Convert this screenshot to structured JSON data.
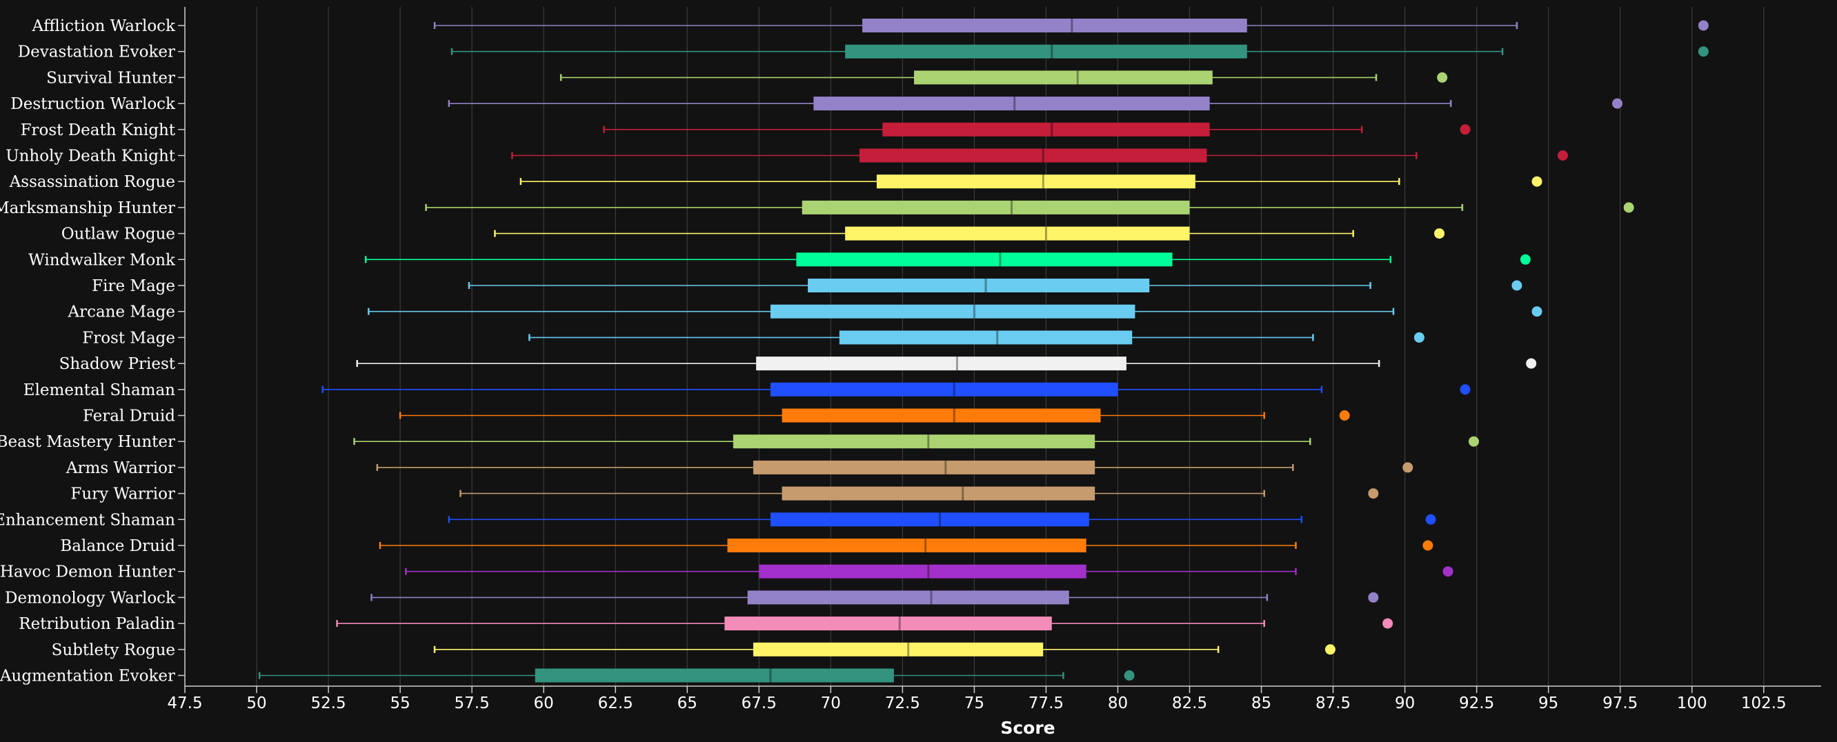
{
  "chart_data": {
    "type": "boxplot",
    "title": "",
    "xlabel": "Score",
    "ylabel": "",
    "xlim": [
      47.5,
      104.5
    ],
    "x_ticks": [
      "47.5",
      "50",
      "52.5",
      "55",
      "57.5",
      "60",
      "62.5",
      "65",
      "67.5",
      "70",
      "72.5",
      "75",
      "77.5",
      "80",
      "82.5",
      "85",
      "87.5",
      "90",
      "92.5",
      "95",
      "97.5",
      "100",
      "102.5"
    ],
    "grid": true,
    "legend": "none",
    "series": [
      {
        "category": "Affliction Warlock",
        "color": "#9482c9",
        "min": 56.2,
        "q1": 71.1,
        "median": 78.4,
        "q3": 84.5,
        "max": 93.9,
        "outlier": 100.4
      },
      {
        "category": "Devastation Evoker",
        "color": "#33937f",
        "min": 56.8,
        "q1": 70.5,
        "median": 77.7,
        "q3": 84.5,
        "max": 93.4,
        "outlier": 100.4
      },
      {
        "category": "Survival Hunter",
        "color": "#aad372",
        "min": 60.6,
        "q1": 72.9,
        "median": 78.6,
        "q3": 83.3,
        "max": 89.0,
        "outlier": 91.3
      },
      {
        "category": "Destruction Warlock",
        "color": "#9482c9",
        "min": 56.7,
        "q1": 69.4,
        "median": 76.4,
        "q3": 83.2,
        "max": 91.6,
        "outlier": 97.4
      },
      {
        "category": "Frost Death Knight",
        "color": "#c41e3a",
        "min": 62.1,
        "q1": 71.8,
        "median": 77.7,
        "q3": 83.2,
        "max": 88.5,
        "outlier": 92.1
      },
      {
        "category": "Unholy Death Knight",
        "color": "#c41e3a",
        "min": 58.9,
        "q1": 71.0,
        "median": 77.4,
        "q3": 83.1,
        "max": 90.4,
        "outlier": 95.5
      },
      {
        "category": "Assassination Rogue",
        "color": "#fff468",
        "min": 59.2,
        "q1": 71.6,
        "median": 77.4,
        "q3": 82.7,
        "max": 89.8,
        "outlier": 94.6
      },
      {
        "category": "Marksmanship Hunter",
        "color": "#aad372",
        "min": 55.9,
        "q1": 69.0,
        "median": 76.3,
        "q3": 82.5,
        "max": 92.0,
        "outlier": 97.8
      },
      {
        "category": "Outlaw Rogue",
        "color": "#fff468",
        "min": 58.3,
        "q1": 70.5,
        "median": 77.5,
        "q3": 82.5,
        "max": 88.2,
        "outlier": 91.2
      },
      {
        "category": "Windwalker Monk",
        "color": "#00ff98",
        "min": 53.8,
        "q1": 68.8,
        "median": 75.9,
        "q3": 81.9,
        "max": 89.5,
        "outlier": 94.2
      },
      {
        "category": "Fire Mage",
        "color": "#69ccf0",
        "min": 57.4,
        "q1": 69.2,
        "median": 75.4,
        "q3": 81.1,
        "max": 88.8,
        "outlier": 93.9
      },
      {
        "category": "Arcane Mage",
        "color": "#69ccf0",
        "min": 53.9,
        "q1": 67.9,
        "median": 75.0,
        "q3": 80.6,
        "max": 89.6,
        "outlier": 94.6
      },
      {
        "category": "Frost Mage",
        "color": "#69ccf0",
        "min": 59.5,
        "q1": 70.3,
        "median": 75.8,
        "q3": 80.5,
        "max": 86.8,
        "outlier": 90.5
      },
      {
        "category": "Shadow Priest",
        "color": "#f0f0f0",
        "min": 53.5,
        "q1": 67.4,
        "median": 74.4,
        "q3": 80.3,
        "max": 89.1,
        "outlier": 94.4
      },
      {
        "category": "Elemental Shaman",
        "color": "#1f4fff",
        "min": 52.3,
        "q1": 67.9,
        "median": 74.3,
        "q3": 80.0,
        "max": 87.1,
        "outlier": 92.1
      },
      {
        "category": "Feral Druid",
        "color": "#ff7c0a",
        "min": 55.0,
        "q1": 68.3,
        "median": 74.3,
        "q3": 79.4,
        "max": 85.1,
        "outlier": 87.9
      },
      {
        "category": "Beast Mastery Hunter",
        "color": "#aad372",
        "min": 53.4,
        "q1": 66.6,
        "median": 73.4,
        "q3": 79.2,
        "max": 86.7,
        "outlier": 92.4
      },
      {
        "category": "Arms Warrior",
        "color": "#c69b6d",
        "min": 54.2,
        "q1": 67.3,
        "median": 74.0,
        "q3": 79.2,
        "max": 86.1,
        "outlier": 90.1
      },
      {
        "category": "Fury Warrior",
        "color": "#c69b6d",
        "min": 57.1,
        "q1": 68.3,
        "median": 74.6,
        "q3": 79.2,
        "max": 85.1,
        "outlier": 88.9
      },
      {
        "category": "Enhancement Shaman",
        "color": "#1f4fff",
        "min": 56.7,
        "q1": 67.9,
        "median": 73.8,
        "q3": 79.0,
        "max": 86.4,
        "outlier": 90.9
      },
      {
        "category": "Balance Druid",
        "color": "#ff7c0a",
        "min": 54.3,
        "q1": 66.4,
        "median": 73.3,
        "q3": 78.9,
        "max": 86.2,
        "outlier": 90.8
      },
      {
        "category": "Havoc Demon Hunter",
        "color": "#a330c9",
        "min": 55.2,
        "q1": 67.5,
        "median": 73.4,
        "q3": 78.9,
        "max": 86.2,
        "outlier": 91.5
      },
      {
        "category": "Demonology Warlock",
        "color": "#9482c9",
        "min": 54.0,
        "q1": 67.1,
        "median": 73.5,
        "q3": 78.3,
        "max": 85.2,
        "outlier": 88.9
      },
      {
        "category": "Retribution Paladin",
        "color": "#f48cba",
        "min": 52.8,
        "q1": 66.3,
        "median": 72.4,
        "q3": 77.7,
        "max": 85.1,
        "outlier": 89.4
      },
      {
        "category": "Subtlety Rogue",
        "color": "#fff468",
        "min": 56.2,
        "q1": 67.3,
        "median": 72.7,
        "q3": 77.4,
        "max": 83.5,
        "outlier": 87.4
      },
      {
        "category": "Augmentation Evoker",
        "color": "#33937f",
        "min": 50.1,
        "q1": 59.7,
        "median": 67.9,
        "q3": 72.2,
        "max": 78.1,
        "outlier": 80.4
      }
    ]
  }
}
